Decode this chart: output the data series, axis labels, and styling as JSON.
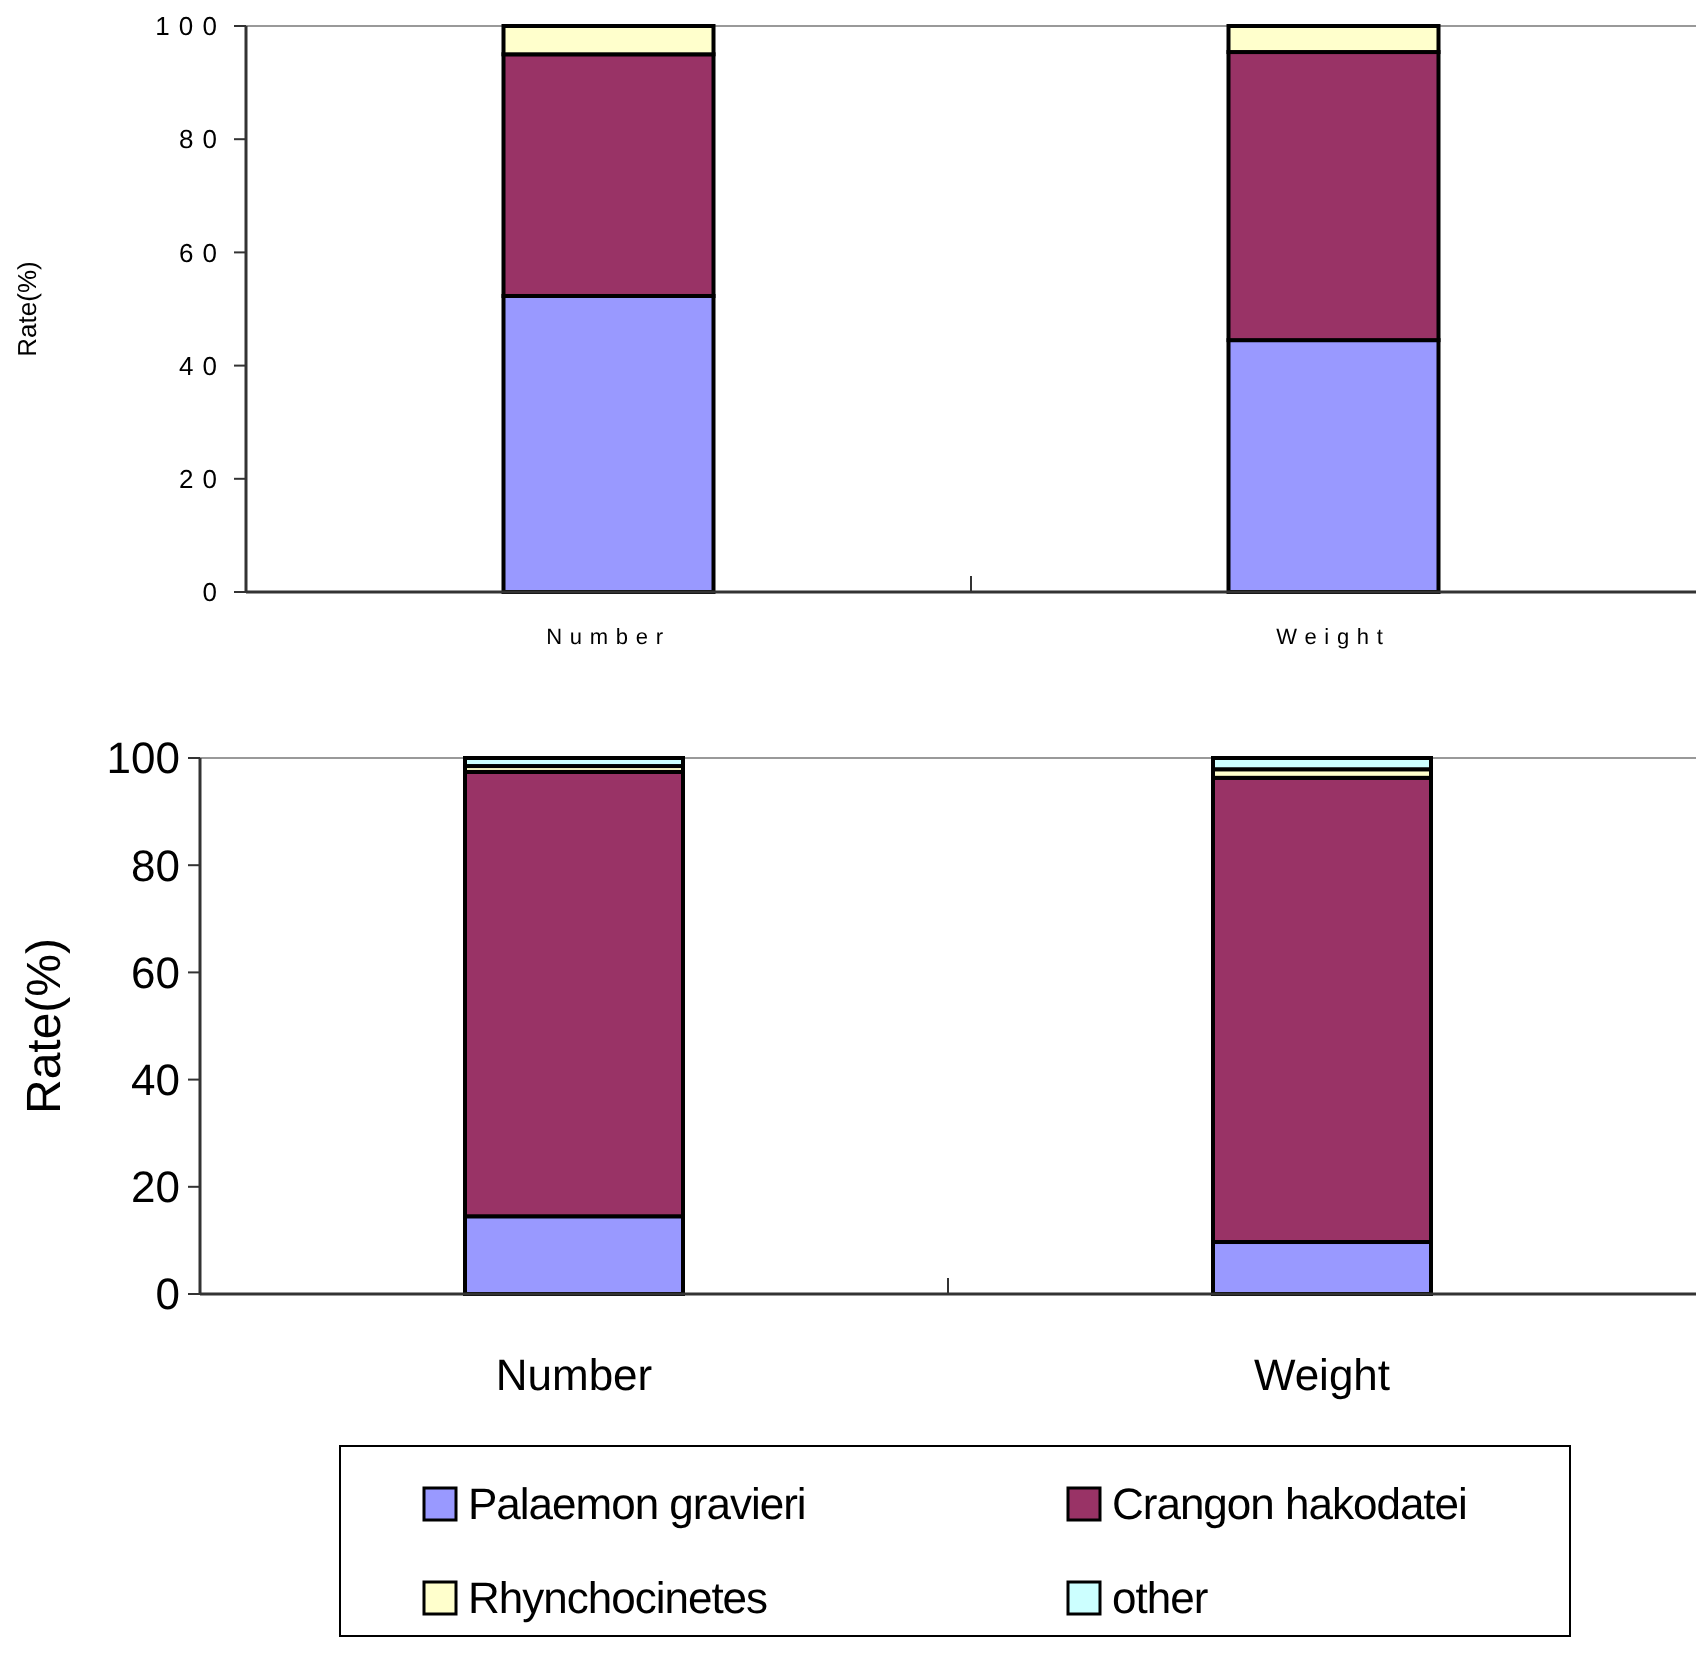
{
  "chart_data": [
    {
      "type": "bar",
      "stacked": true,
      "ylabel": "Rate(%)",
      "categories": [
        "Number",
        "Weight"
      ],
      "ylim": [
        0,
        100
      ],
      "yticks": [
        0,
        20,
        40,
        60,
        80,
        100
      ],
      "legend": false,
      "series": [
        {
          "color": "#9999ff",
          "values": [
            52.3,
            44.5
          ]
        },
        {
          "color": "#993366",
          "values": [
            42.7,
            50.9
          ]
        },
        {
          "color": "#ffffcc",
          "values": [
            5,
            4.6
          ]
        }
      ]
    },
    {
      "type": "bar",
      "stacked": true,
      "ylabel": "Rate(%)",
      "categories": [
        "Number",
        "Weight"
      ],
      "ylim": [
        0,
        100
      ],
      "yticks": [
        0,
        20,
        40,
        60,
        80,
        100
      ],
      "legend": "bottom",
      "series": [
        {
          "name": "Palaemon gravieri",
          "color": "#9999ff",
          "values": [
            14.5,
            9.7
          ]
        },
        {
          "name": "Crangon hakodatei",
          "color": "#993366",
          "values": [
            82.9,
            86.6
          ]
        },
        {
          "name": "Rhynchocinetes",
          "color": "#ffffcc",
          "values": [
            1.1,
            1.6
          ]
        },
        {
          "name": "other",
          "color": "#ccffff",
          "values": [
            1.5,
            2.1
          ]
        }
      ]
    }
  ]
}
